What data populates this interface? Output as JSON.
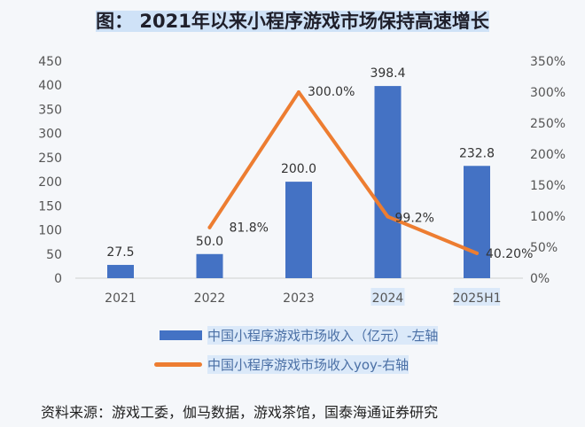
{
  "title": "图：  2021年以来小程序游戏市场保持高速增长",
  "chart_data": {
    "type": "bar+line",
    "title": "图：  2021年以来小程序游戏市场保持高速增长",
    "categories": [
      "2021",
      "2022",
      "2023",
      "2024",
      "2025H1"
    ],
    "left_axis": {
      "ylim": [
        0,
        450
      ],
      "ticks": [
        0,
        50,
        100,
        150,
        200,
        250,
        300,
        350,
        400,
        450
      ]
    },
    "right_axis": {
      "ylim": [
        0,
        350
      ],
      "ticks": [
        "0%",
        "50%",
        "100%",
        "150%",
        "200%",
        "250%",
        "300%",
        "350%"
      ]
    },
    "grid": false,
    "legend_position": "bottom",
    "series": [
      {
        "name": "中国小程序游戏市场收入（亿元）-左轴",
        "type": "bar",
        "axis": "left",
        "color": "#4472c4",
        "values": [
          27.5,
          50.0,
          200.0,
          398.4,
          232.8
        ],
        "labels": [
          "27.5",
          "50.0",
          "200.0",
          "398.4",
          "232.8"
        ]
      },
      {
        "name": "中国小程序游戏市场收入yoy-右轴",
        "type": "line",
        "axis": "right",
        "color": "#ed7d31",
        "values": [
          null,
          81.8,
          300.0,
          99.2,
          40.2
        ],
        "labels": [
          "",
          "81.8%",
          "300.0%",
          "99.2%",
          "40.20%"
        ]
      }
    ]
  },
  "source": "资料来源：游戏工委，伽马数据，游戏茶馆，国泰海通证券研究"
}
